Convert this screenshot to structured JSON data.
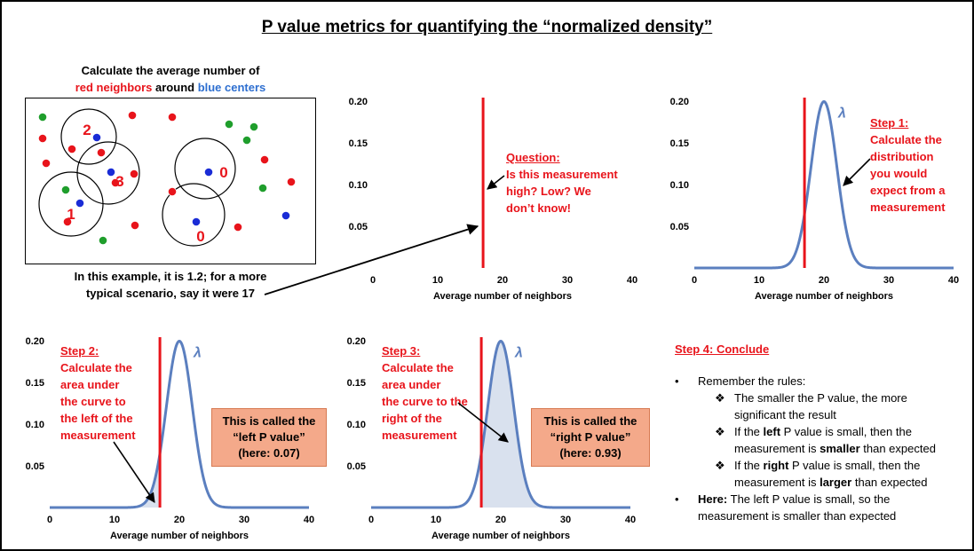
{
  "title": "P value metrics for quantifying the “normalized density”",
  "intro": {
    "line1": "Calculate the average number of",
    "red_part": "red neighbors",
    "around": " around ",
    "blue_part": "blue centers"
  },
  "example": {
    "line1": "In this example, it is 1.2; for a more",
    "line2": "typical scenario, say it were 17"
  },
  "scatter_labels": [
    "2",
    "3",
    "1",
    "0",
    "0"
  ],
  "colors": {
    "red": "#e8141b",
    "blue": "#1a2cd6",
    "green": "#1f9e2c",
    "curve": "#5b7fbf",
    "shade": "#d9e1ee",
    "callout_bg": "#f4a98a"
  },
  "axis": {
    "xlabel": "Average number of neighbors",
    "yticks": [
      "0.20",
      "0.15",
      "0.10",
      "0.05"
    ],
    "xticks": [
      "0",
      "10",
      "20",
      "30",
      "40"
    ],
    "curve_label": "λ"
  },
  "question": {
    "heading": "Question:",
    "body": [
      "Is this measurement",
      "high? Low? We",
      "don’t know!"
    ]
  },
  "step1": {
    "heading": "Step 1:",
    "body": [
      "Calculate the",
      "distribution",
      "you would",
      "expect from a",
      "measurement"
    ]
  },
  "step2": {
    "heading": "Step 2:",
    "body": [
      "Calculate the",
      "area under",
      "the curve to",
      "the left of the",
      "measurement"
    ],
    "callout": [
      "This is called the",
      "“left P value”",
      "(here: 0.07)"
    ]
  },
  "step3": {
    "heading": "Step 3:",
    "body": [
      "Calculate the",
      "area under",
      "the curve to the",
      "right of the",
      "measurement"
    ],
    "callout": [
      "This is called the",
      "“right P value”",
      "(here: 0.93)"
    ]
  },
  "step4": {
    "heading": "Step 4: Conclude",
    "remember": "Remember the rules:",
    "rule1": [
      "The smaller the P value, the more",
      "significant the result"
    ],
    "rule2": {
      "a": "If the ",
      "b": "left",
      "c": " P value is small, then the",
      "d": "measurement is ",
      "e": "smaller",
      "f": " than expected"
    },
    "rule3": {
      "a": "If the ",
      "b": "right",
      "c": " P value is small, then the",
      "d": "measurement is ",
      "e": "larger",
      "f": " than expected"
    },
    "here": {
      "bold": "Here:",
      "rest": " The left P value is small, so the",
      "line2": "measurement is smaller than expected"
    },
    "bullet_glyph": "•",
    "diamond_glyph": "❖"
  },
  "chart_data": [
    {
      "type": "line",
      "title": "",
      "xlabel": "Average number of neighbors",
      "xlim": [
        0,
        40
      ],
      "ylim": [
        0,
        0.2
      ],
      "measurement": 17,
      "curve": false
    },
    {
      "type": "area",
      "title": "",
      "xlabel": "Average number of neighbors",
      "xlim": [
        0,
        40
      ],
      "ylim": [
        0,
        0.2
      ],
      "measurement": 17,
      "curve": true,
      "mean": 20,
      "sd": 2,
      "shade": "none"
    },
    {
      "type": "area",
      "title": "",
      "xlabel": "Average number of neighbors",
      "xlim": [
        0,
        40
      ],
      "ylim": [
        0,
        0.2
      ],
      "measurement": 17,
      "curve": true,
      "mean": 20,
      "sd": 2,
      "shade": "left"
    },
    {
      "type": "area",
      "title": "",
      "xlabel": "Average number of neighbors",
      "xlim": [
        0,
        40
      ],
      "ylim": [
        0,
        0.2
      ],
      "measurement": 17,
      "curve": true,
      "mean": 20,
      "sd": 2,
      "shade": "right"
    }
  ]
}
